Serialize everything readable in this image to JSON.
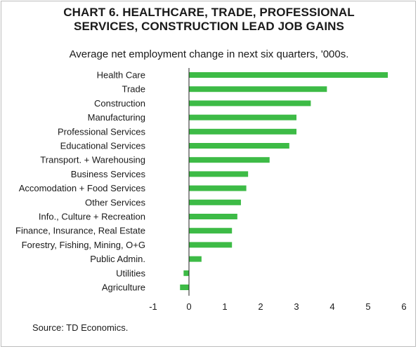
{
  "chart_data": {
    "type": "bar",
    "orientation": "horizontal",
    "title_lines": [
      "CHART 6. HEALTHCARE, TRADE, PROFESSIONAL",
      "SERVICES, CONSTRUCTION LEAD JOB GAINS"
    ],
    "subtitle": "Average net employment change in next six quarters, '000s.",
    "source": "Source: TD Economics.",
    "categories": [
      "Health Care",
      "Trade",
      "Construction",
      "Manufacturing",
      "Professional Services",
      "Educational Services",
      "Transport. + Warehousing",
      "Business Services",
      "Accomodation + Food Services",
      "Other Services",
      "Info., Culture + Recreation",
      "Finance, Insurance, Real Estate",
      "Forestry, Fishing, Mining, O+G",
      "Public Admin.",
      "Utilities",
      "Agriculture"
    ],
    "values": [
      5.55,
      3.85,
      3.4,
      3.0,
      3.0,
      2.8,
      2.25,
      1.65,
      1.6,
      1.45,
      1.35,
      1.2,
      1.2,
      0.35,
      -0.15,
      -0.25
    ],
    "xlim": [
      -1,
      6
    ],
    "xticks": [
      "-1",
      "0",
      "1",
      "2",
      "3",
      "4",
      "5",
      "6"
    ],
    "grid": false,
    "bar_color": "#3dbb46"
  }
}
